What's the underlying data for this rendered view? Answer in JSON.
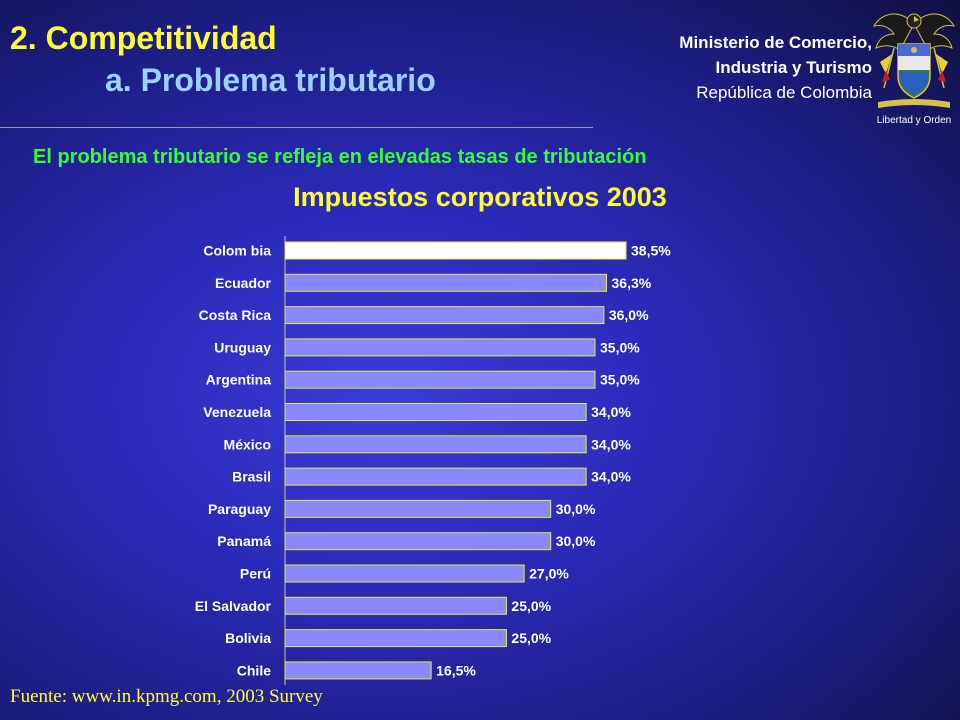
{
  "header": {
    "title_1": "2. Competitividad",
    "title_2": "a. Problema tributario",
    "ministry_line_1": "Ministerio de Comercio,",
    "ministry_line_2": "Industria y Turismo",
    "ministry_line_3": "República de Colombia",
    "crest_motto": "Libertad y Orden"
  },
  "subtitle": "El problema tributario se refleja en elevadas tasas de tributación",
  "chart_data": {
    "type": "bar",
    "orientation": "horizontal",
    "title": "Impuestos corporativos 2003",
    "categories": [
      "Colom bia",
      "Ecuador",
      "Costa Rica",
      "Uruguay",
      "Argentina",
      "Venezuela",
      "México",
      "Brasil",
      "Paraguay",
      "Panamá",
      "Perú",
      "El Salvador",
      "Bolivia",
      "Chile"
    ],
    "values": [
      38.5,
      36.3,
      36.0,
      35.0,
      35.0,
      34.0,
      34.0,
      34.0,
      30.0,
      30.0,
      27.0,
      25.0,
      25.0,
      16.5
    ],
    "value_labels": [
      "38,5%",
      "36,3%",
      "36,0%",
      "35,0%",
      "35,0%",
      "34,0%",
      "34,0%",
      "34,0%",
      "30,0%",
      "30,0%",
      "27,0%",
      "25,0%",
      "25,0%",
      "16,5%"
    ],
    "highlight_category": "Colom bia",
    "colors": {
      "bar": "#8888ff",
      "highlight": "#ffffff",
      "bar_border": "#e8e840",
      "text": "#ffffff"
    },
    "xlim": [
      0,
      40
    ],
    "grid": false,
    "legend": "none"
  },
  "source": "Fuente: www.in.kpmg.com, 2003 Survey"
}
